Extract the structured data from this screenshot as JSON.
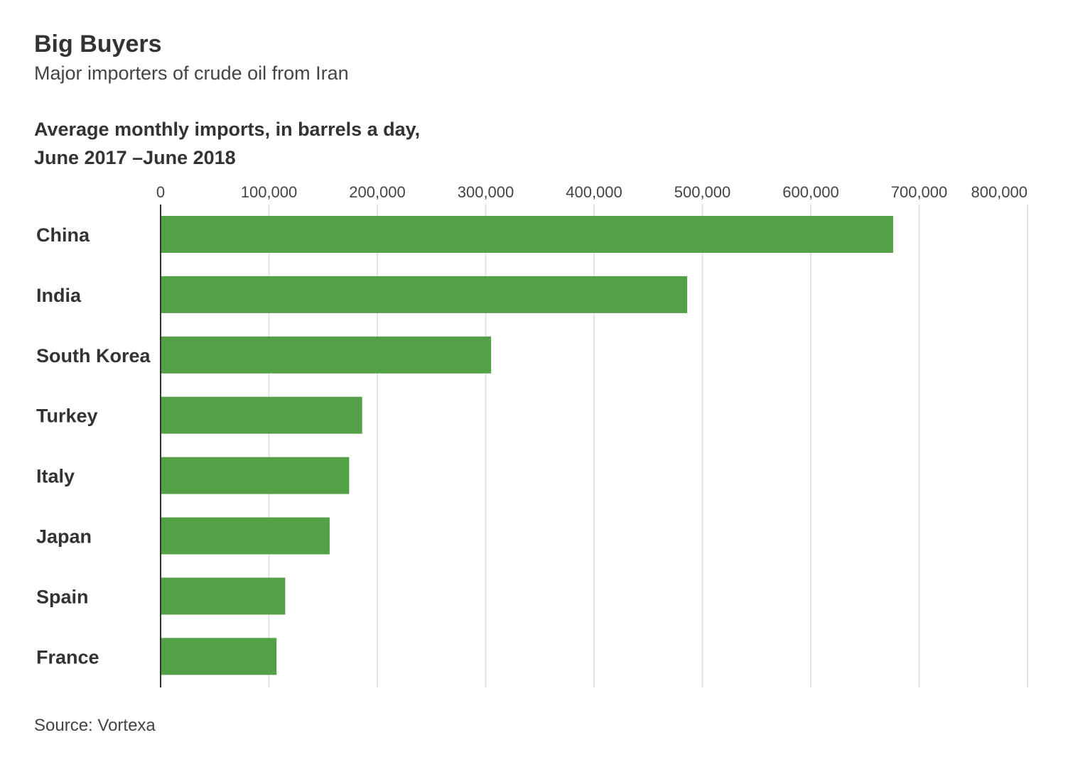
{
  "header": {
    "title": "Big Buyers",
    "subtitle": "Major importers of crude oil from Iran",
    "axis_heading_line1": "Average monthly imports, in barrels a day,",
    "axis_heading_line2": "June 2017 –June 2018"
  },
  "footer": {
    "source": "Source: Vortexa"
  },
  "colors": {
    "bar": "#54a047",
    "grid": "#e3e3e3",
    "axis": "#333333"
  },
  "chart_data": {
    "type": "bar",
    "orientation": "horizontal",
    "title": "Big Buyers",
    "subtitle": "Major importers of crude oil from Iran",
    "xlabel": "Average monthly imports, in barrels a day, June 2017 –June 2018",
    "ylabel": "",
    "categories": [
      "China",
      "India",
      "South Korea",
      "Turkey",
      "Italy",
      "Japan",
      "Spain",
      "France"
    ],
    "values": [
      676000,
      486000,
      305000,
      186000,
      174000,
      156000,
      115000,
      107000
    ],
    "xlim": [
      0,
      800000
    ],
    "ticks": [
      0,
      100000,
      200000,
      300000,
      400000,
      500000,
      600000,
      700000,
      800000
    ],
    "tick_labels": [
      "0",
      "100,000",
      "200,000",
      "300,000",
      "400,000",
      "500,000",
      "600,000",
      "700,000",
      "800,000"
    ],
    "grid": true,
    "tick_position": "top"
  }
}
